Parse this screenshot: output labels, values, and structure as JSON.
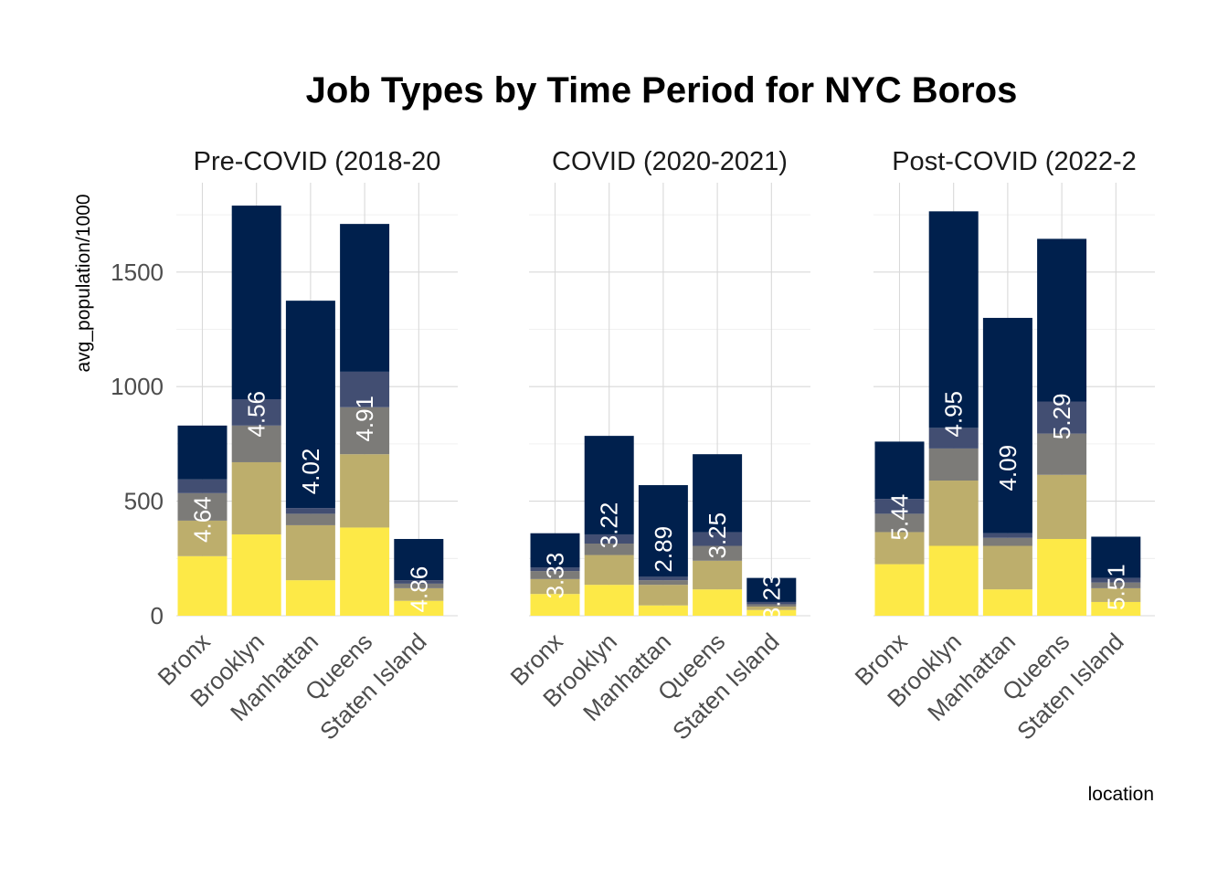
{
  "chart_data": {
    "type": "bar",
    "stacked": true,
    "title": "Job Types by Time Period for NYC Boros",
    "ylabel": "avg_population/1000",
    "xlabel": "location",
    "ylim": [
      0,
      1880
    ],
    "yticks": [
      0,
      500,
      1000,
      1500
    ],
    "grid": true,
    "legend": "none",
    "categories": [
      "Bronx",
      "Brooklyn",
      "Manhattan",
      "Queens",
      "Staten Island"
    ],
    "segment_colors": [
      "#FDE947",
      "#BDAE6C",
      "#7C7B78",
      "#424E72",
      "#00204D"
    ],
    "panels": [
      {
        "title": "Pre-COVID (2018-20",
        "stacks": [
          [
            260,
            155,
            120,
            60,
            235
          ],
          [
            355,
            315,
            160,
            115,
            845
          ],
          [
            155,
            240,
            50,
            25,
            905
          ],
          [
            385,
            320,
            205,
            155,
            645
          ],
          [
            65,
            55,
            20,
            15,
            180
          ]
        ],
        "labels": [
          "4.64",
          "4.56",
          "4.02",
          "4.91",
          "4.86"
        ],
        "label_y": [
          420,
          880,
          630,
          860,
          115
        ]
      },
      {
        "title": "COVID (2020-2021)",
        "stacks": [
          [
            95,
            65,
            35,
            15,
            150
          ],
          [
            135,
            130,
            50,
            40,
            430
          ],
          [
            45,
            90,
            20,
            15,
            400
          ],
          [
            115,
            125,
            65,
            60,
            340
          ],
          [
            25,
            15,
            10,
            10,
            105
          ]
        ],
        "labels": [
          "3.33",
          "3.22",
          "2.89",
          "3.25",
          "3.23"
        ],
        "label_y": [
          175,
          395,
          290,
          350,
          80
        ]
      },
      {
        "title": "Post-COVID (2022-2",
        "stacks": [
          [
            225,
            140,
            80,
            65,
            250
          ],
          [
            305,
            285,
            140,
            90,
            945
          ],
          [
            115,
            190,
            35,
            20,
            940
          ],
          [
            335,
            280,
            180,
            140,
            710
          ],
          [
            60,
            60,
            25,
            20,
            180
          ]
        ],
        "labels": [
          "5.44",
          "4.95",
          "4.09",
          "5.29",
          "5.51"
        ],
        "label_y": [
          430,
          880,
          645,
          870,
          125
        ]
      }
    ]
  }
}
